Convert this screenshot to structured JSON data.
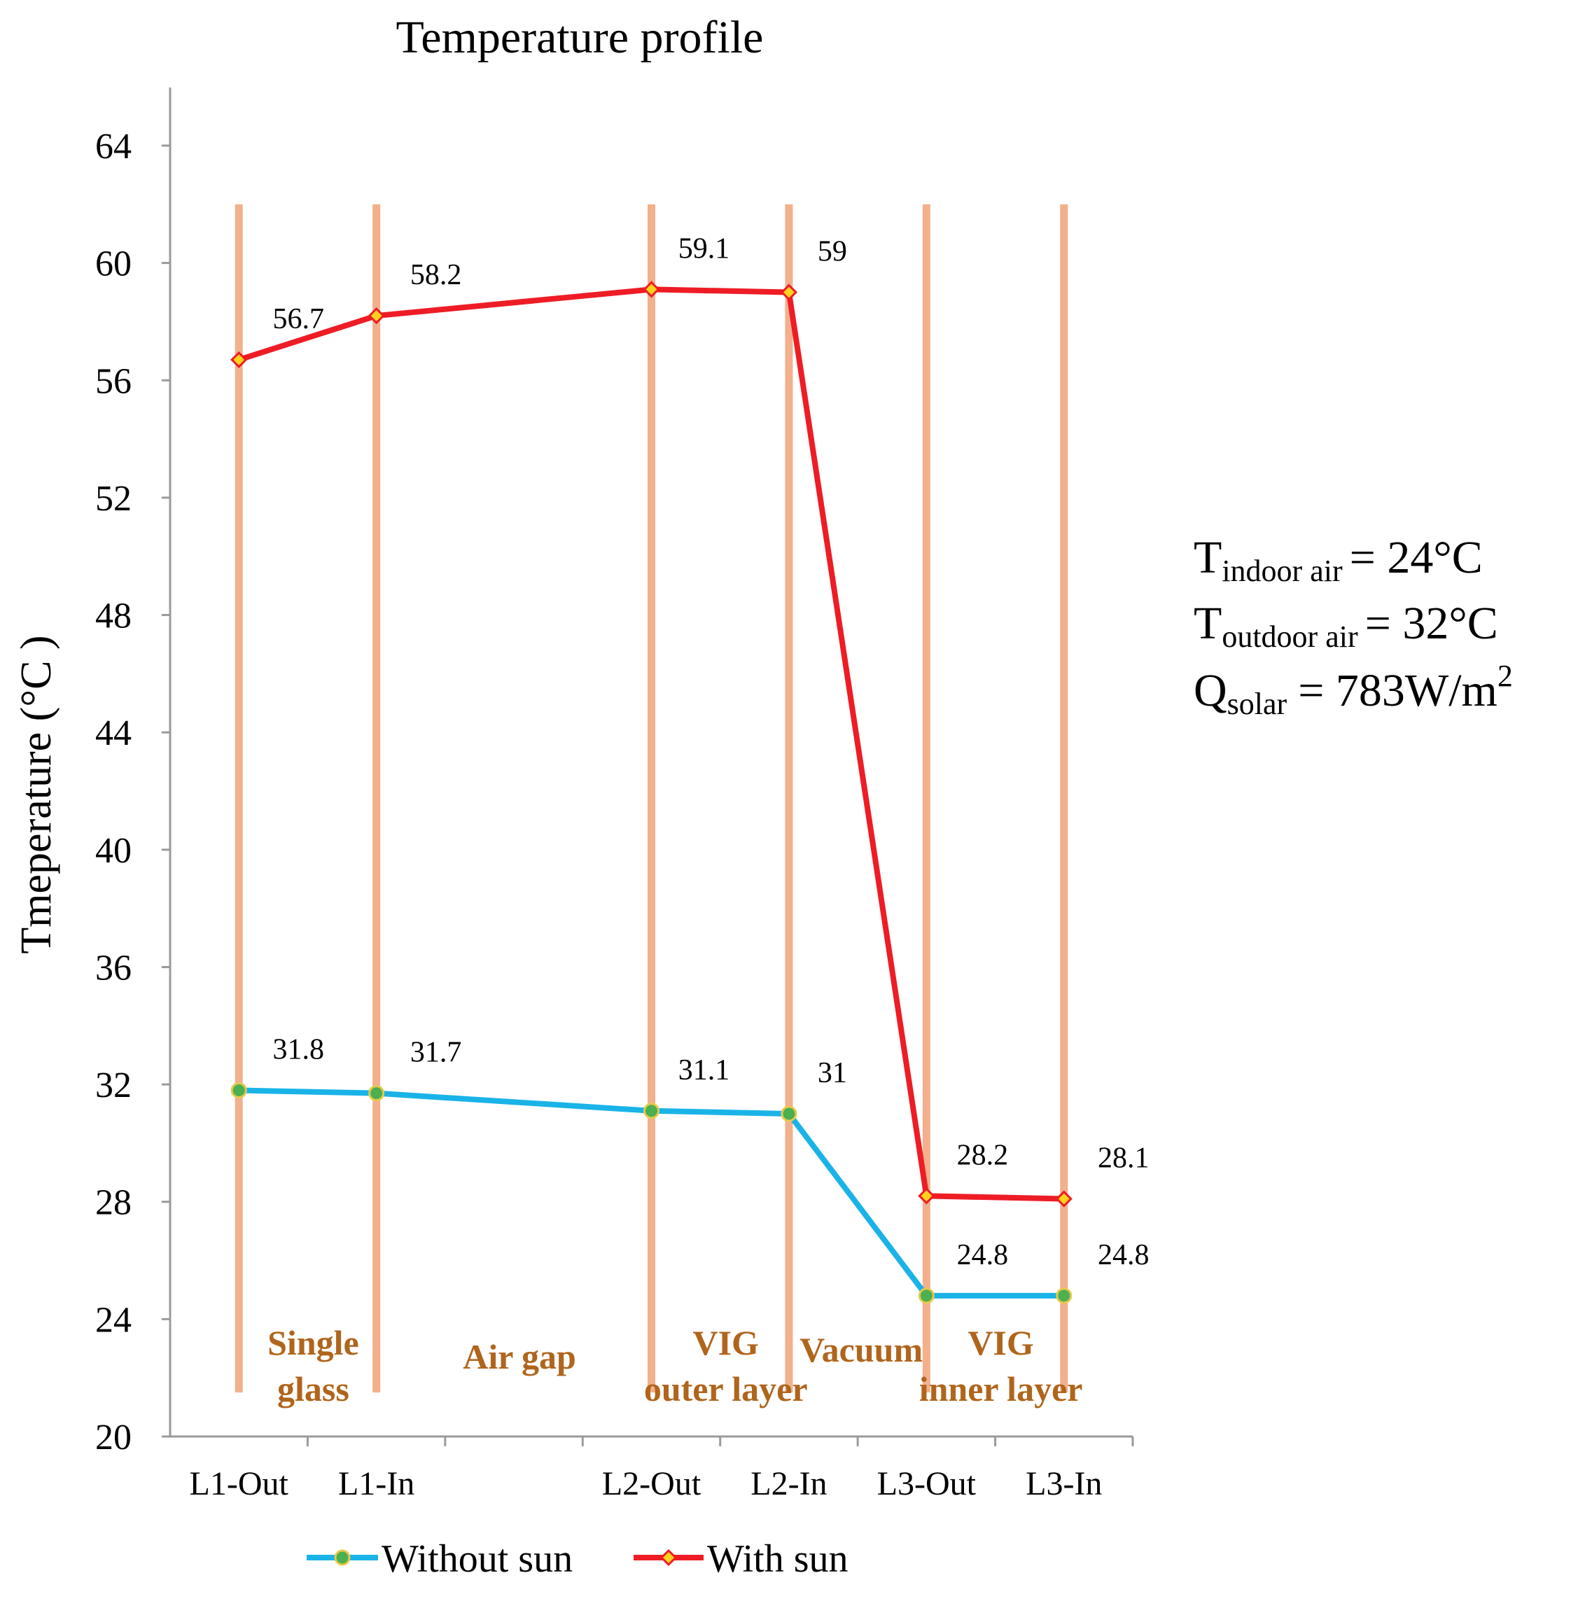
{
  "chart_data": {
    "type": "line",
    "title": "Temperature profile",
    "xlabel": "",
    "ylabel": "Tmeperature (°C )",
    "ylim": [
      20,
      66
    ],
    "yticks": [
      20,
      24,
      28,
      32,
      36,
      40,
      44,
      48,
      52,
      56,
      60,
      64
    ],
    "categories": [
      "L1-Out",
      "L1-In",
      "L2-Out",
      "L2-In",
      "L3-Out",
      "L3-In"
    ],
    "x": [
      0.5,
      1.5,
      3.5,
      4.5,
      5.5,
      6.5
    ],
    "xlim": [
      0,
      7
    ],
    "series": [
      {
        "name": "Without sun",
        "values": [
          31.8,
          31.7,
          31.1,
          31,
          24.8,
          24.8
        ],
        "labels": [
          "31.8",
          "31.7",
          "31.1",
          "31",
          "24.8",
          "24.8"
        ],
        "color": "#1ab3e8",
        "marker": "circle",
        "marker_color": "#4caf50",
        "marker_edge": "#e6c94a"
      },
      {
        "name": "With sun",
        "values": [
          56.7,
          58.2,
          59.1,
          59,
          28.2,
          28.1
        ],
        "labels": [
          "56.7",
          "58.2",
          "59.1",
          "59",
          "28.2",
          "28.1"
        ],
        "color": "#ee1c25",
        "marker": "diamond",
        "marker_color": "#ffd21e",
        "marker_edge": "#ee1c25"
      }
    ],
    "layer_line_color": "#f2b08c",
    "regions": [
      {
        "lines": [
          "Single",
          "glass"
        ]
      },
      {
        "lines": [
          "Air gap"
        ]
      },
      {
        "lines": [
          "VIG",
          "outer layer"
        ]
      },
      {
        "lines": [
          "Vacuum"
        ]
      },
      {
        "lines": [
          "VIG",
          "inner layer"
        ]
      }
    ],
    "region_color": "#b0651c",
    "legend_position": "bottom",
    "grid": false
  },
  "conditions": [
    {
      "symbol": "T",
      "sub": "indoor air",
      "rest": "= 24°C"
    },
    {
      "symbol": "T",
      "sub": "outdoor air",
      "rest": "= 32°C"
    },
    {
      "symbol": "Q",
      "sub": "solar",
      "rest": "= 783W/m",
      "sup": "2"
    }
  ]
}
